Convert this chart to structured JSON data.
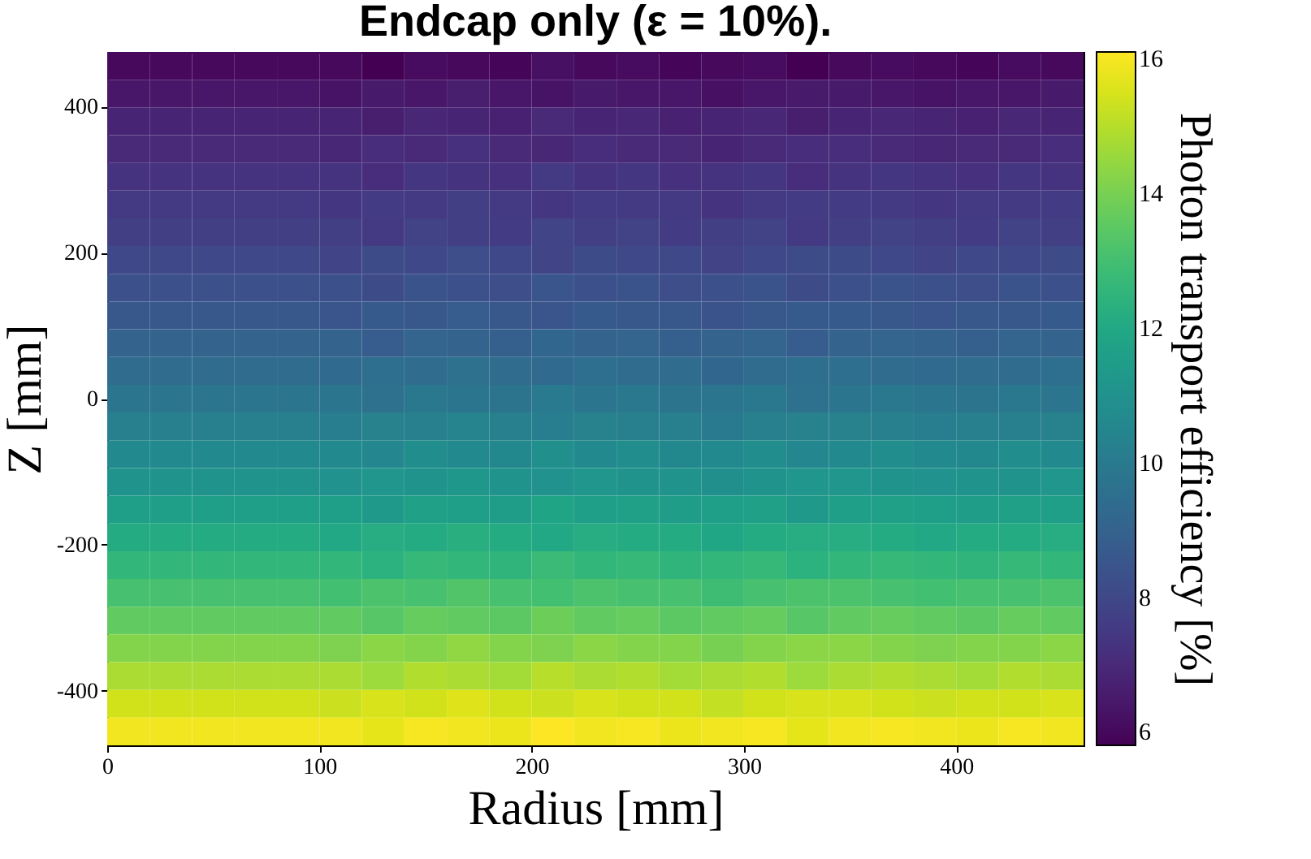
{
  "chart_data": {
    "type": "heatmap",
    "title": "Endcap only (ε = 10%).",
    "xlabel": "Radius [mm]",
    "ylabel": "Z [mm]",
    "clabel": "Photon transport efficiency [%]",
    "x": [
      10,
      30,
      50,
      70,
      90,
      110,
      130,
      150,
      170,
      190,
      210,
      230,
      250,
      270,
      290,
      310,
      330,
      350,
      370,
      390,
      410,
      430,
      450
    ],
    "y": [
      456,
      418,
      380,
      342,
      304,
      266,
      228,
      190,
      152,
      114,
      76,
      38,
      0,
      -38,
      -76,
      -114,
      -152,
      -190,
      -228,
      -266,
      -304,
      -342,
      -380,
      -418,
      -456
    ],
    "cells": [
      [
        6.0,
        6.0,
        6.0,
        6.0,
        6.0,
        6.0,
        5.8,
        6.1,
        6.0,
        5.9,
        6.2,
        6.0,
        6.1,
        5.9,
        6.0,
        6.1,
        5.8,
        6.0,
        6.1,
        6.0,
        5.9,
        6.1,
        6.0
      ],
      [
        6.4,
        6.4,
        6.4,
        6.4,
        6.4,
        6.3,
        6.5,
        6.4,
        6.6,
        6.4,
        6.3,
        6.5,
        6.4,
        6.4,
        6.2,
        6.4,
        6.5,
        6.5,
        6.4,
        6.3,
        6.4,
        6.4,
        6.5
      ],
      [
        6.8,
        6.8,
        6.8,
        6.8,
        6.8,
        6.8,
        6.6,
        6.9,
        6.8,
        6.7,
        7.0,
        6.8,
        6.9,
        6.7,
        6.8,
        6.9,
        6.6,
        6.8,
        6.9,
        6.8,
        6.7,
        6.9,
        6.8
      ],
      [
        7.0,
        7.0,
        7.0,
        7.0,
        7.0,
        6.9,
        7.1,
        7.0,
        7.2,
        7.0,
        6.9,
        7.1,
        7.0,
        7.0,
        6.8,
        7.0,
        7.1,
        7.1,
        7.0,
        6.9,
        7.0,
        7.0,
        7.1
      ],
      [
        7.3,
        7.3,
        7.3,
        7.3,
        7.3,
        7.3,
        7.1,
        7.4,
        7.3,
        7.2,
        7.5,
        7.3,
        7.4,
        7.2,
        7.3,
        7.4,
        7.1,
        7.3,
        7.4,
        7.3,
        7.2,
        7.4,
        7.3
      ],
      [
        7.5,
        7.5,
        7.5,
        7.5,
        7.5,
        7.4,
        7.6,
        7.5,
        7.7,
        7.5,
        7.4,
        7.6,
        7.5,
        7.5,
        7.3,
        7.5,
        7.6,
        7.6,
        7.5,
        7.4,
        7.5,
        7.5,
        7.6
      ],
      [
        7.7,
        7.7,
        7.7,
        7.7,
        7.7,
        7.7,
        7.5,
        7.8,
        7.7,
        7.6,
        7.9,
        7.7,
        7.8,
        7.6,
        7.7,
        7.8,
        7.5,
        7.7,
        7.8,
        7.7,
        7.6,
        7.8,
        7.7
      ],
      [
        8.0,
        8.0,
        8.0,
        8.0,
        8.0,
        7.9,
        8.1,
        8.0,
        8.2,
        8.0,
        7.9,
        8.1,
        8.0,
        8.0,
        7.8,
        8.0,
        8.1,
        8.1,
        8.0,
        7.9,
        8.0,
        8.0,
        8.1
      ],
      [
        8.3,
        8.3,
        8.3,
        8.3,
        8.3,
        8.3,
        8.1,
        8.4,
        8.3,
        8.2,
        8.5,
        8.3,
        8.4,
        8.2,
        8.3,
        8.4,
        8.1,
        8.3,
        8.4,
        8.3,
        8.2,
        8.4,
        8.3
      ],
      [
        8.6,
        8.6,
        8.6,
        8.6,
        8.6,
        8.5,
        8.7,
        8.6,
        8.8,
        8.6,
        8.5,
        8.7,
        8.6,
        8.6,
        8.4,
        8.6,
        8.7,
        8.7,
        8.6,
        8.5,
        8.6,
        8.6,
        8.7
      ],
      [
        9.0,
        9.0,
        9.0,
        9.0,
        9.0,
        9.0,
        8.8,
        9.1,
        9.0,
        8.9,
        9.2,
        9.0,
        9.1,
        8.9,
        9.0,
        9.1,
        8.8,
        9.0,
        9.1,
        9.0,
        8.9,
        9.1,
        9.0
      ],
      [
        9.4,
        9.4,
        9.4,
        9.4,
        9.4,
        9.3,
        9.5,
        9.4,
        9.6,
        9.4,
        9.3,
        9.5,
        9.4,
        9.4,
        9.2,
        9.4,
        9.5,
        9.5,
        9.4,
        9.3,
        9.4,
        9.4,
        9.5
      ],
      [
        9.8,
        9.8,
        9.8,
        9.8,
        9.8,
        9.8,
        9.6,
        9.9,
        9.8,
        9.7,
        10.0,
        9.8,
        9.9,
        9.7,
        9.8,
        9.9,
        9.6,
        9.8,
        9.9,
        9.8,
        9.7,
        9.9,
        9.8
      ],
      [
        10.2,
        10.2,
        10.2,
        10.2,
        10.2,
        10.1,
        10.3,
        10.2,
        10.4,
        10.2,
        10.1,
        10.3,
        10.2,
        10.2,
        10.0,
        10.2,
        10.3,
        10.3,
        10.2,
        10.1,
        10.2,
        10.2,
        10.3
      ],
      [
        10.7,
        10.7,
        10.7,
        10.7,
        10.7,
        10.7,
        10.5,
        10.8,
        10.7,
        10.6,
        10.9,
        10.7,
        10.8,
        10.6,
        10.7,
        10.8,
        10.5,
        10.7,
        10.8,
        10.7,
        10.6,
        10.8,
        10.7
      ],
      [
        11.1,
        11.1,
        11.1,
        11.1,
        11.1,
        11.0,
        11.2,
        11.1,
        11.3,
        11.1,
        11.0,
        11.2,
        11.1,
        11.1,
        10.9,
        11.1,
        11.2,
        11.2,
        11.1,
        11.0,
        11.1,
        11.1,
        11.2
      ],
      [
        11.6,
        11.6,
        11.6,
        11.6,
        11.6,
        11.6,
        11.4,
        11.7,
        11.6,
        11.5,
        11.8,
        11.6,
        11.7,
        11.5,
        11.6,
        11.7,
        11.4,
        11.6,
        11.7,
        11.6,
        11.5,
        11.7,
        11.6
      ],
      [
        12.1,
        12.1,
        12.1,
        12.1,
        12.1,
        12.0,
        12.2,
        12.1,
        12.3,
        12.1,
        12.0,
        12.2,
        12.1,
        12.1,
        11.9,
        12.1,
        12.2,
        12.2,
        12.1,
        12.0,
        12.1,
        12.1,
        12.2
      ],
      [
        12.6,
        12.6,
        12.6,
        12.6,
        12.6,
        12.6,
        12.4,
        12.7,
        12.6,
        12.5,
        12.8,
        12.6,
        12.7,
        12.5,
        12.6,
        12.7,
        12.4,
        12.6,
        12.7,
        12.6,
        12.5,
        12.7,
        12.6
      ],
      [
        13.1,
        13.1,
        13.1,
        13.1,
        13.1,
        13.0,
        13.2,
        13.1,
        13.3,
        13.1,
        13.0,
        13.2,
        13.1,
        13.1,
        12.9,
        13.1,
        13.2,
        13.2,
        13.1,
        13.0,
        13.1,
        13.1,
        13.2
      ],
      [
        13.6,
        13.6,
        13.6,
        13.6,
        13.6,
        13.6,
        13.4,
        13.7,
        13.6,
        13.5,
        13.8,
        13.6,
        13.7,
        13.5,
        13.6,
        13.7,
        13.4,
        13.6,
        13.7,
        13.6,
        13.5,
        13.7,
        13.6
      ],
      [
        14.2,
        14.2,
        14.2,
        14.2,
        14.2,
        14.1,
        14.3,
        14.2,
        14.4,
        14.2,
        14.1,
        14.3,
        14.2,
        14.2,
        14.0,
        14.2,
        14.3,
        14.3,
        14.2,
        14.1,
        14.2,
        14.2,
        14.3
      ],
      [
        14.8,
        14.8,
        14.8,
        14.8,
        14.8,
        14.8,
        14.6,
        14.9,
        14.8,
        14.7,
        15.0,
        14.8,
        14.9,
        14.7,
        14.8,
        14.9,
        14.6,
        14.8,
        14.9,
        14.8,
        14.7,
        14.9,
        14.8
      ],
      [
        15.4,
        15.4,
        15.4,
        15.4,
        15.4,
        15.3,
        15.5,
        15.4,
        15.6,
        15.4,
        15.3,
        15.5,
        15.4,
        15.4,
        15.2,
        15.4,
        15.5,
        15.5,
        15.4,
        15.3,
        15.4,
        15.4,
        15.5
      ],
      [
        15.9,
        15.9,
        15.9,
        15.9,
        15.9,
        15.9,
        15.7,
        16.0,
        15.9,
        15.8,
        16.1,
        15.9,
        16.0,
        15.8,
        15.9,
        16.0,
        15.7,
        15.9,
        16.0,
        15.9,
        15.8,
        16.0,
        15.9
      ]
    ],
    "xlim": [
      0,
      460
    ],
    "xticks": [
      0,
      100,
      200,
      300,
      400
    ],
    "ylim": [
      -475,
      475
    ],
    "yticks": [
      -400,
      -200,
      0,
      200,
      400
    ],
    "clim": [
      5.8,
      16.1
    ],
    "cticks": [
      6,
      8,
      10,
      12,
      14,
      16
    ]
  }
}
